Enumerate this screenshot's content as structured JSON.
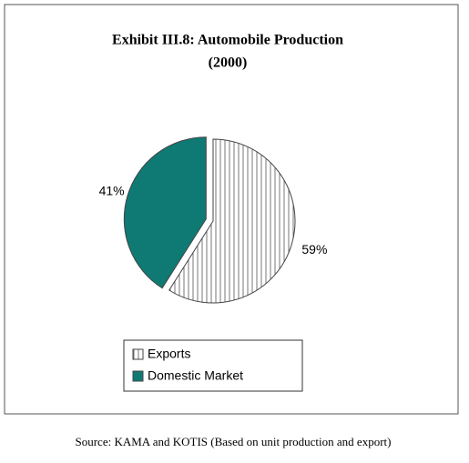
{
  "chart_data": {
    "type": "pie",
    "title": [
      "Exhibit III.8: Automobile Production",
      "(2000)"
    ],
    "categories": [
      "Exports",
      "Domestic Market"
    ],
    "values": [
      59,
      41
    ],
    "value_labels": [
      "59%",
      "41%"
    ],
    "colors": [
      "#ffffff",
      "#0f7a74"
    ],
    "source": "Source: KAMA and KOTIS (Based on unit production and export)"
  }
}
